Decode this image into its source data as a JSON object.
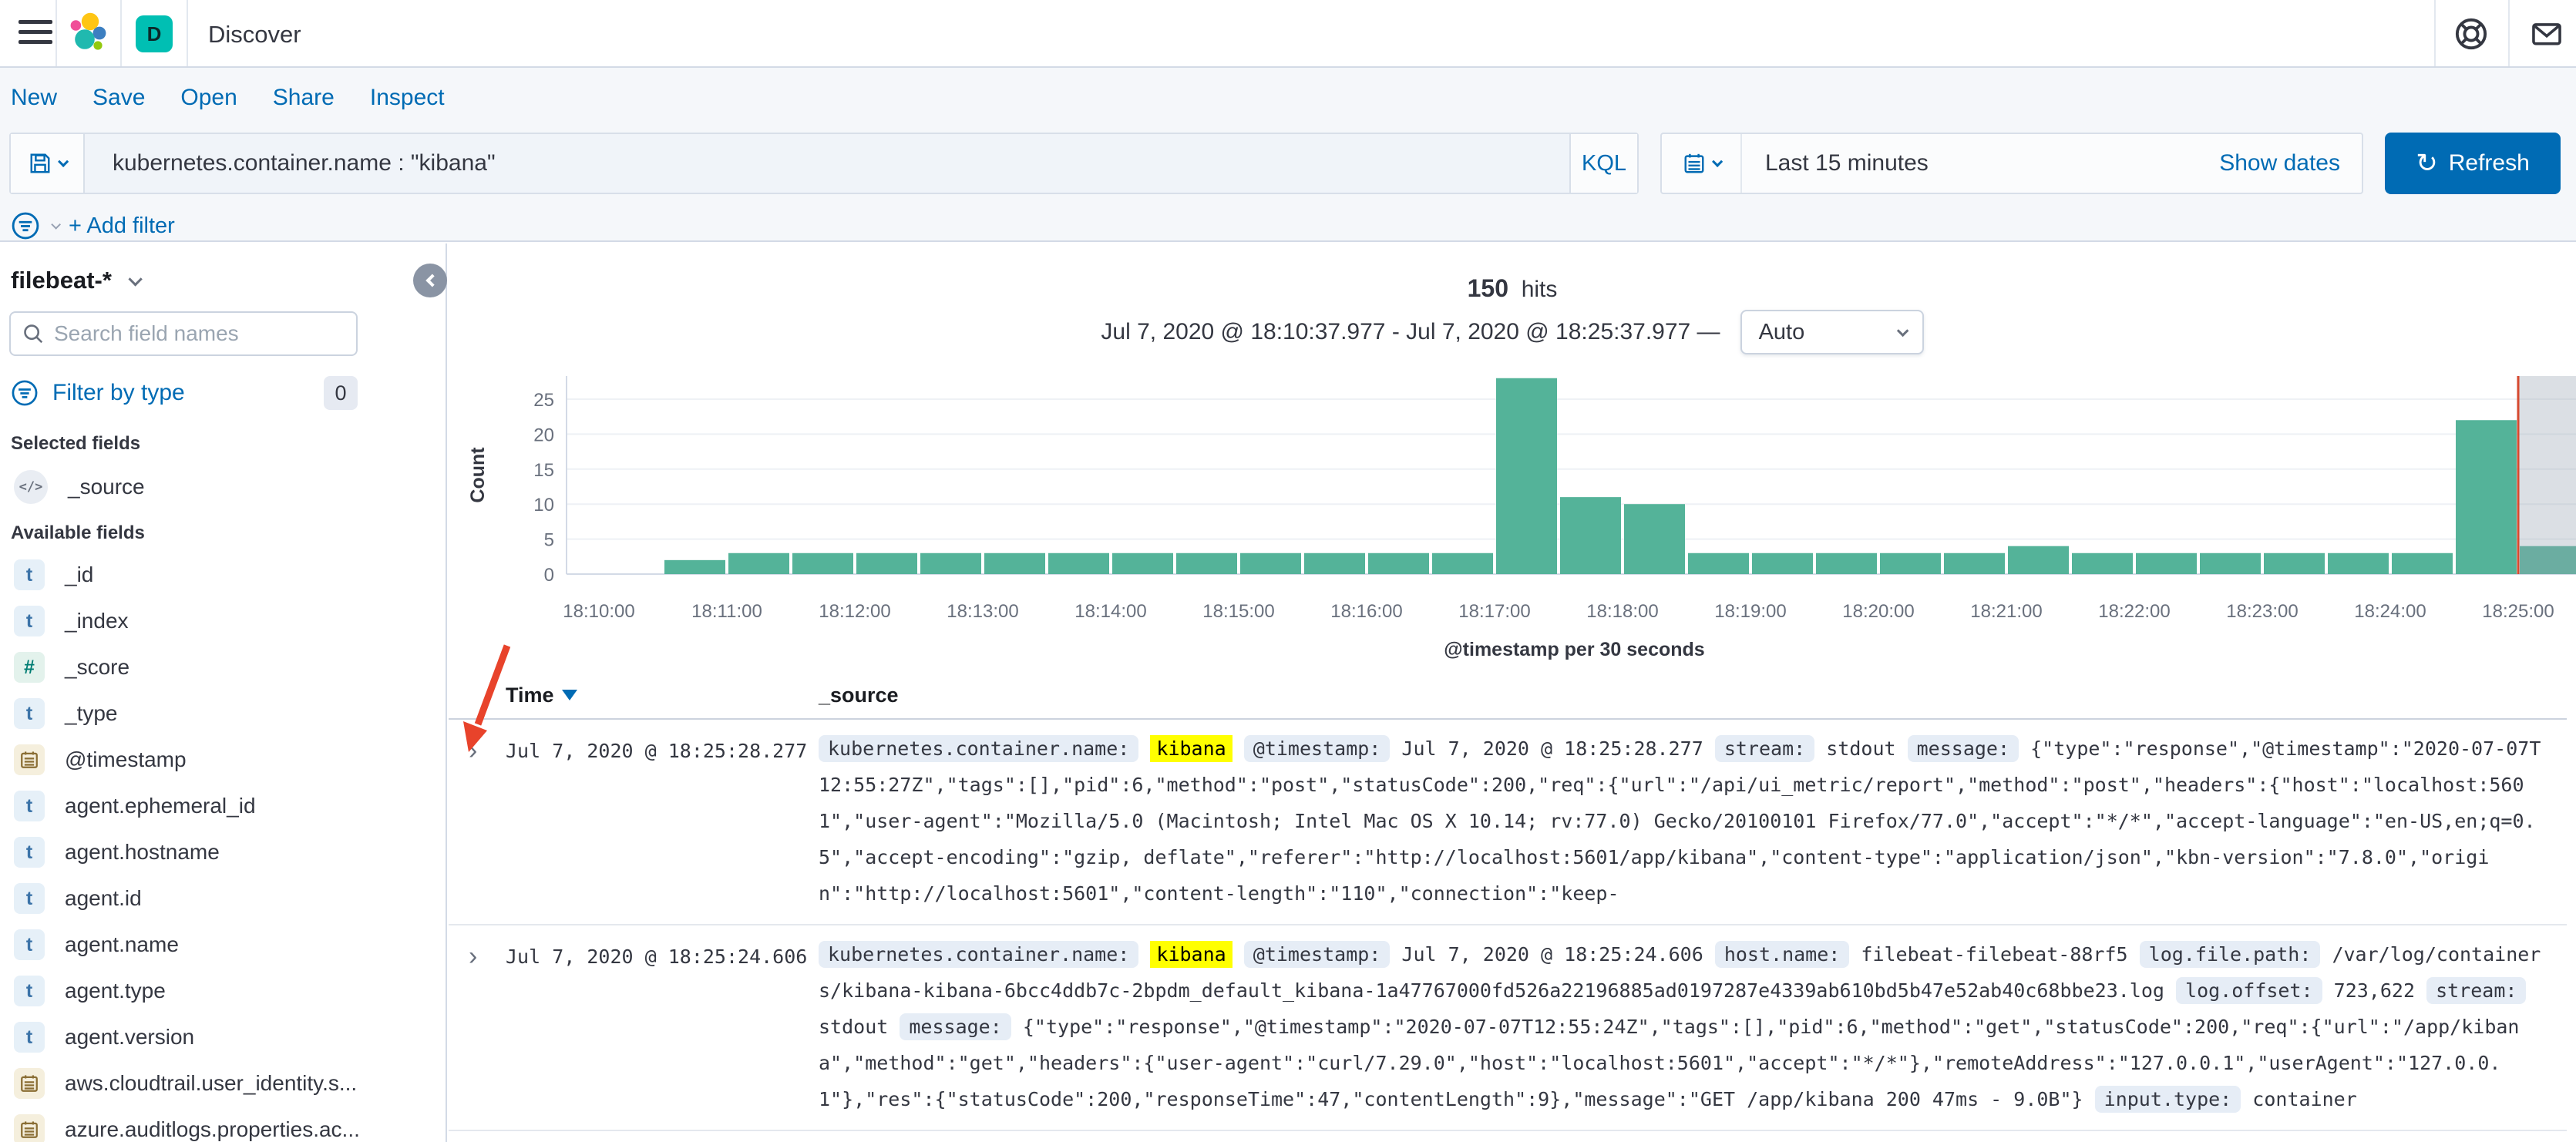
{
  "header": {
    "title": "Discover",
    "app_badge": "D",
    "icons": {
      "menu": "hamburger",
      "help": "life-ring",
      "news": "envelope"
    }
  },
  "menubar": {
    "items": [
      "New",
      "Save",
      "Open",
      "Share",
      "Inspect"
    ]
  },
  "querybar": {
    "query": "kubernetes.container.name : \"kibana\"",
    "language_label": "KQL",
    "time_range": "Last 15 minutes",
    "show_dates_label": "Show dates",
    "refresh_label": "Refresh"
  },
  "filterbar": {
    "add_filter_label": "+ Add filter"
  },
  "sidebar": {
    "index_pattern": "filebeat-*",
    "search_placeholder": "Search field names",
    "filter_by_type_label": "Filter by type",
    "filter_count": "0",
    "selected_heading": "Selected fields",
    "selected_fields": [
      {
        "name": "_source",
        "type": "source"
      }
    ],
    "available_heading": "Available fields",
    "available_fields": [
      {
        "name": "_id",
        "type": "string"
      },
      {
        "name": "_index",
        "type": "string"
      },
      {
        "name": "_score",
        "type": "number"
      },
      {
        "name": "_type",
        "type": "string"
      },
      {
        "name": "@timestamp",
        "type": "date"
      },
      {
        "name": "agent.ephemeral_id",
        "type": "string"
      },
      {
        "name": "agent.hostname",
        "type": "string"
      },
      {
        "name": "agent.id",
        "type": "string"
      },
      {
        "name": "agent.name",
        "type": "string"
      },
      {
        "name": "agent.type",
        "type": "string"
      },
      {
        "name": "agent.version",
        "type": "string"
      },
      {
        "name": "aws.cloudtrail.user_identity.s...",
        "type": "date"
      },
      {
        "name": "azure.auditlogs.properties.ac...",
        "type": "date"
      }
    ]
  },
  "results": {
    "hits_count": "150",
    "hits_label": "hits",
    "range_display": "Jul 7, 2020 @ 18:10:37.977 - Jul 7, 2020 @ 18:25:37.977 —",
    "interval_selected": "Auto"
  },
  "chart_data": {
    "type": "bar",
    "title": "",
    "xlabel": "@timestamp per 30 seconds",
    "ylabel": "Count",
    "ylim": [
      0,
      28.5
    ],
    "yticks": [
      0,
      5,
      10,
      15,
      20,
      25
    ],
    "xtick_labels": [
      "18:10:00",
      "18:11:00",
      "18:12:00",
      "18:13:00",
      "18:14:00",
      "18:15:00",
      "18:16:00",
      "18:17:00",
      "18:18:00",
      "18:19:00",
      "18:20:00",
      "18:21:00",
      "18:22:00",
      "18:23:00",
      "18:24:00",
      "18:25:00"
    ],
    "bucket_interval_seconds": 30,
    "bar_color": "#54b399",
    "grid": true,
    "legend": "none",
    "current_time_marker": {
      "at": "18:25:00",
      "color": "#d6492f"
    },
    "incomplete_bucket_shade_color": "rgba(152,162,179,0.35)",
    "buckets": [
      {
        "time": "18:10:00",
        "count": 0
      },
      {
        "time": "18:10:30",
        "count": 2
      },
      {
        "time": "18:11:00",
        "count": 3
      },
      {
        "time": "18:11:30",
        "count": 3
      },
      {
        "time": "18:12:00",
        "count": 3
      },
      {
        "time": "18:12:30",
        "count": 3
      },
      {
        "time": "18:13:00",
        "count": 3
      },
      {
        "time": "18:13:30",
        "count": 3
      },
      {
        "time": "18:14:00",
        "count": 3
      },
      {
        "time": "18:14:30",
        "count": 3
      },
      {
        "time": "18:15:00",
        "count": 3
      },
      {
        "time": "18:15:30",
        "count": 3
      },
      {
        "time": "18:16:00",
        "count": 3
      },
      {
        "time": "18:16:30",
        "count": 3
      },
      {
        "time": "18:17:00",
        "count": 28
      },
      {
        "time": "18:17:30",
        "count": 11
      },
      {
        "time": "18:18:00",
        "count": 10
      },
      {
        "time": "18:18:30",
        "count": 3
      },
      {
        "time": "18:19:00",
        "count": 3
      },
      {
        "time": "18:19:30",
        "count": 3
      },
      {
        "time": "18:20:00",
        "count": 3
      },
      {
        "time": "18:20:30",
        "count": 3
      },
      {
        "time": "18:21:00",
        "count": 4
      },
      {
        "time": "18:21:30",
        "count": 3
      },
      {
        "time": "18:22:00",
        "count": 3
      },
      {
        "time": "18:22:30",
        "count": 3
      },
      {
        "time": "18:23:00",
        "count": 3
      },
      {
        "time": "18:23:30",
        "count": 3
      },
      {
        "time": "18:24:00",
        "count": 3
      },
      {
        "time": "18:24:30",
        "count": 22
      },
      {
        "time": "18:25:00",
        "count": 4
      }
    ]
  },
  "table": {
    "columns": [
      "Time",
      "_source"
    ],
    "rows": [
      {
        "time": "Jul 7, 2020 @ 18:25:28.277",
        "tokens": [
          {
            "t": "field",
            "v": "kubernetes.container.name:"
          },
          {
            "t": "highlight",
            "v": "kibana"
          },
          {
            "t": "field",
            "v": "@timestamp:"
          },
          {
            "t": "text",
            "v": "Jul 7, 2020 @ 18:25:28.277"
          },
          {
            "t": "field",
            "v": "stream:"
          },
          {
            "t": "text",
            "v": "stdout"
          },
          {
            "t": "field",
            "v": "message:"
          },
          {
            "t": "text",
            "v": "{\"type\":\"response\",\"@timestamp\":\"2020-07-07T12:55:27Z\",\"tags\":[],\"pid\":6,\"method\":\"post\",\"statusCode\":200,\"req\":{\"url\":\"/api/ui_metric/report\",\"method\":\"post\",\"headers\":{\"host\":\"localhost:5601\",\"user-agent\":\"Mozilla/5.0 (Macintosh; Intel Mac OS X 10.14; rv:77.0) Gecko/20100101 Firefox/77.0\",\"accept\":\"*/*\",\"accept-language\":\"en-US,en;q=0.5\",\"accept-encoding\":\"gzip, deflate\",\"referer\":\"http://localhost:5601/app/kibana\",\"content-type\":\"application/json\",\"kbn-version\":\"7.8.0\",\"origin\":\"http://localhost:5601\",\"content-length\":\"110\",\"connection\":\"keep-"
          }
        ]
      },
      {
        "time": "Jul 7, 2020 @ 18:25:24.606",
        "tokens": [
          {
            "t": "field",
            "v": "kubernetes.container.name:"
          },
          {
            "t": "highlight",
            "v": "kibana"
          },
          {
            "t": "field",
            "v": "@timestamp:"
          },
          {
            "t": "text",
            "v": "Jul 7, 2020 @ 18:25:24.606"
          },
          {
            "t": "field",
            "v": "host.name:"
          },
          {
            "t": "text",
            "v": "filebeat-filebeat-88rf5"
          },
          {
            "t": "field",
            "v": "log.file.path:"
          },
          {
            "t": "text",
            "v": "/var/log/containers/kibana-kibana-6bcc4ddb7c-2bpdm_default_kibana-1a47767000fd526a22196885ad0197287e4339ab610bd5b47e52ab40c68bbe23.log"
          },
          {
            "t": "field",
            "v": "log.offset:"
          },
          {
            "t": "text",
            "v": "723,622"
          },
          {
            "t": "field",
            "v": "stream:"
          },
          {
            "t": "text",
            "v": "stdout"
          },
          {
            "t": "field",
            "v": "message:"
          },
          {
            "t": "text",
            "v": "{\"type\":\"response\",\"@timestamp\":\"2020-07-07T12:55:24Z\",\"tags\":[],\"pid\":6,\"method\":\"get\",\"statusCode\":200,\"req\":{\"url\":\"/app/kibana\",\"method\":\"get\",\"headers\":{\"user-agent\":\"curl/7.29.0\",\"host\":\"localhost:5601\",\"accept\":\"*/*\"},\"remoteAddress\":\"127.0.0.1\",\"userAgent\":\"127.0.0.1\"},\"res\":{\"statusCode\":200,\"responseTime\":47,\"contentLength\":9},\"message\":\"GET /app/kibana 200 47ms - 9.0B\"}"
          },
          {
            "t": "field",
            "v": "input.type:"
          },
          {
            "t": "text",
            "v": "container"
          }
        ]
      }
    ]
  },
  "annotation": {
    "arrow_color": "#e8432b",
    "target": "row-1-expand-toggle"
  }
}
